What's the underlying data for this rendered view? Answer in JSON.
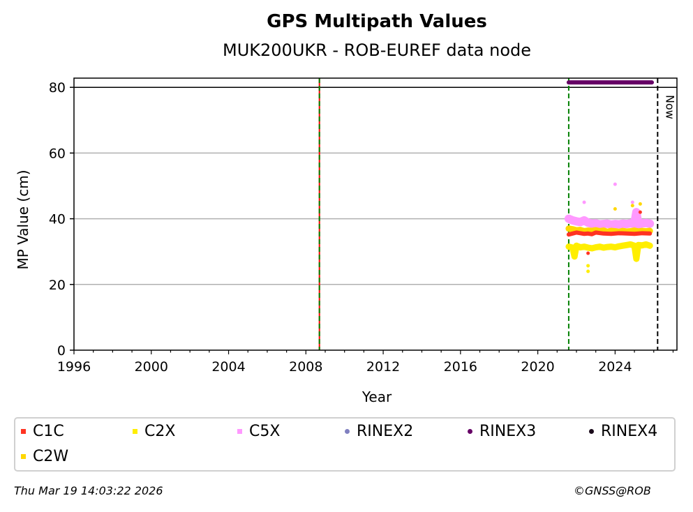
{
  "chart_data": {
    "type": "scatter",
    "title": "GPS Multipath Values",
    "subtitle": "MUK200UKR - ROB-EUREF data node",
    "xlabel": "Year",
    "ylabel": "MP Value (cm)",
    "xlim": [
      1996,
      2027.2
    ],
    "ylim": [
      0,
      82.8
    ],
    "xticks": [
      1996,
      2000,
      2004,
      2008,
      2012,
      2016,
      2020,
      2024
    ],
    "yticks": [
      0,
      20,
      40,
      60,
      80
    ],
    "grid": "y",
    "vlines": [
      {
        "x": 2008.7,
        "color": "#008000",
        "style": "dashed",
        "overlay": "#ff0000"
      },
      {
        "x": 2021.6,
        "color": "#008000",
        "style": "dashed"
      },
      {
        "x": 2026.2,
        "color": "#000000",
        "style": "dashed",
        "label": "Now"
      }
    ],
    "hline": {
      "y": 80,
      "color": "#000000"
    },
    "rinex_bar": {
      "name": "RINEX3",
      "y": 81.5,
      "x": [
        2021.6,
        2025.9
      ],
      "color": "#660066"
    },
    "series": [
      {
        "name": "C5X",
        "color": "#ff99ff",
        "x": [
          2021.6,
          2021.8,
          2022.0,
          2022.2,
          2022.4,
          2022.6,
          2022.8,
          2023.0,
          2023.2,
          2023.4,
          2023.6,
          2023.8,
          2024.0,
          2024.2,
          2024.4,
          2024.6,
          2024.8,
          2025.0,
          2025.2,
          2025.4,
          2025.6,
          2025.8,
          2022.4,
          2024.0,
          2024.9,
          2025.1
        ],
        "y": [
          40,
          39.5,
          39.2,
          39,
          39.5,
          38.8,
          38.5,
          38.6,
          38.3,
          38.4,
          38.5,
          38.2,
          38.4,
          38.3,
          38.5,
          38.4,
          38.6,
          38.5,
          38.3,
          38.6,
          38.7,
          38.5,
          45,
          50.5,
          45,
          42
        ]
      },
      {
        "name": "C2W",
        "color": "#ffd700",
        "x": [
          2021.6,
          2021.8,
          2022.0,
          2022.2,
          2022.4,
          2022.6,
          2022.8,
          2023.0,
          2023.2,
          2023.4,
          2023.6,
          2023.8,
          2024.0,
          2024.2,
          2024.4,
          2024.6,
          2024.8,
          2025.0,
          2025.2,
          2025.4,
          2025.6,
          2025.8,
          2024.0,
          2024.9,
          2025.3
        ],
        "y": [
          37,
          36.8,
          36.5,
          36.6,
          36.2,
          36.4,
          36.3,
          36.5,
          36.2,
          36.4,
          36,
          36.3,
          36.2,
          36,
          36.3,
          36.1,
          36.2,
          36.4,
          36.1,
          36.3,
          36.2,
          36.3,
          43,
          44,
          44.5
        ]
      },
      {
        "name": "C1C",
        "color": "#ff3322",
        "x": [
          2021.6,
          2021.8,
          2022.0,
          2022.2,
          2022.4,
          2022.6,
          2022.8,
          2023.0,
          2023.4,
          2023.8,
          2024.2,
          2024.6,
          2025.0,
          2025.4,
          2025.8,
          2022.6,
          2025.3
        ],
        "y": [
          35.2,
          35.5,
          35.8,
          35.6,
          35.4,
          35.5,
          35.3,
          35.8,
          35.5,
          35.4,
          35.6,
          35.5,
          35.4,
          35.6,
          35.5,
          29.5,
          42
        ]
      },
      {
        "name": "C2X",
        "color": "#ffee00",
        "x": [
          2021.6,
          2021.8,
          2022.0,
          2022.2,
          2022.4,
          2022.6,
          2022.8,
          2023.0,
          2023.2,
          2023.4,
          2023.6,
          2023.8,
          2024.0,
          2024.2,
          2024.4,
          2024.6,
          2024.8,
          2025.0,
          2025.2,
          2025.4,
          2025.6,
          2025.8,
          2022.6,
          2022.6,
          2021.9,
          2025.1
        ],
        "y": [
          31.5,
          31.2,
          31.8,
          31.3,
          31.5,
          31.2,
          31,
          31.3,
          31.5,
          31.2,
          31.4,
          31.5,
          31.3,
          31.6,
          31.8,
          32,
          32.2,
          31.8,
          32,
          31.9,
          32.2,
          31.8,
          24,
          25.7,
          28.5,
          27.8
        ]
      }
    ],
    "xtick_labels": [
      "1996",
      "2000",
      "2004",
      "2008",
      "2012",
      "2016",
      "2020",
      "2024"
    ],
    "ytick_labels": [
      "0",
      "20",
      "40",
      "60",
      "80"
    ]
  },
  "legend": [
    {
      "label": "C1C",
      "color": "#ff3322",
      "shape": "x"
    },
    {
      "label": "C2X",
      "color": "#ffee00",
      "shape": "x"
    },
    {
      "label": "C5X",
      "color": "#ff99ff",
      "shape": "x"
    },
    {
      "label": "RINEX2",
      "color": "#8080c0",
      "shape": "dot"
    },
    {
      "label": "RINEX3",
      "color": "#660066",
      "shape": "dot"
    },
    {
      "label": "RINEX4",
      "color": "#1a0a1a",
      "shape": "dot"
    },
    {
      "label": "C2W",
      "color": "#ffd700",
      "shape": "x"
    }
  ],
  "footer": {
    "date": "Thu Mar 19 14:03:22 2026",
    "copyright": "©GNSS@ROB"
  }
}
